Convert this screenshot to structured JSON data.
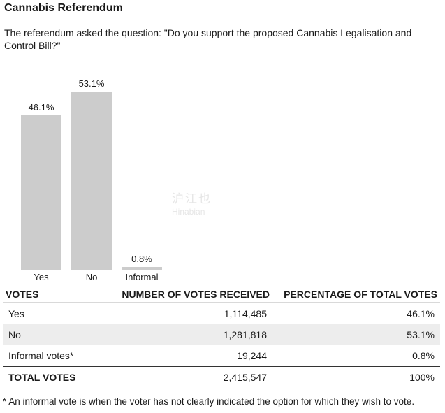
{
  "header": {
    "title": "Cannabis Referendum",
    "question": "The referendum asked the question: \"Do you support the proposed Cannabis Legalisation and Control Bill?\""
  },
  "watermark": {
    "cn": "沪江也",
    "en": "Hinabian"
  },
  "chart_data": {
    "type": "bar",
    "categories": [
      "Yes",
      "No",
      "Informal"
    ],
    "values": [
      46.1,
      53.1,
      0.8
    ],
    "data_labels": [
      "46.1%",
      "53.1%",
      "0.8%"
    ],
    "ylim": [
      0,
      55
    ],
    "grid": false,
    "bar_color": "#cccccc"
  },
  "table": {
    "headers": [
      "VOTES",
      "NUMBER OF VOTES RECEIVED",
      "PERCENTAGE OF TOTAL VOTES"
    ],
    "rows": [
      [
        "Yes",
        "1,114,485",
        "46.1%"
      ],
      [
        "No",
        "1,281,818",
        "53.1%"
      ],
      [
        "Informal votes*",
        "19,244",
        "0.8%"
      ]
    ],
    "total": [
      "TOTAL VOTES",
      "2,415,547",
      "100%"
    ]
  },
  "footnote": "* An informal vote is when the voter has not clearly indicated the option for which they wish to vote."
}
